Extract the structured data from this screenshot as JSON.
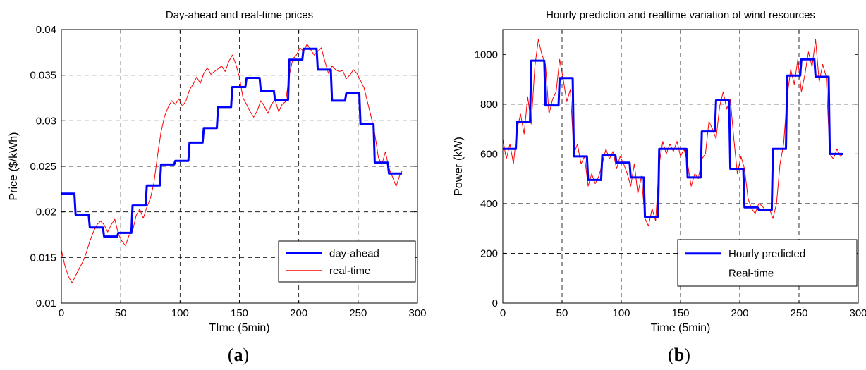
{
  "chart_data": [
    {
      "type": "line",
      "title": "Day-ahead and real-time prices",
      "xlabel": "TIme (5min)",
      "ylabel": "Price ($/kWh)",
      "xlim": [
        0,
        300
      ],
      "ylim": [
        0.01,
        0.04
      ],
      "xticks": [
        "0",
        "50",
        "100",
        "150",
        "200",
        "250",
        "300"
      ],
      "yticks": [
        "0.01",
        "0.015",
        "0.02",
        "0.025",
        "0.03",
        "0.035",
        "0.04"
      ],
      "grid": true,
      "legend_position": "bottom-right",
      "panel_label": {
        "open": "(",
        "letter": "a",
        "close": ")"
      },
      "series": [
        {
          "name": "day-ahead",
          "color": "#0000ff",
          "style": "step",
          "x_step": 12,
          "values": [
            0.022,
            0.0197,
            0.0183,
            0.0173,
            0.0177,
            0.0207,
            0.0229,
            0.0252,
            0.0256,
            0.0276,
            0.0292,
            0.0315,
            0.0337,
            0.0347,
            0.0333,
            0.0323,
            0.0367,
            0.0379,
            0.0356,
            0.0322,
            0.033,
            0.0296,
            0.0254,
            0.0242
          ]
        },
        {
          "name": "real-time",
          "color": "#ff0000",
          "style": "line",
          "x": [
            0,
            3,
            6,
            9,
            12,
            15,
            18,
            21,
            24,
            27,
            30,
            33,
            36,
            39,
            42,
            45,
            48,
            51,
            54,
            57,
            60,
            63,
            66,
            69,
            72,
            75,
            78,
            81,
            84,
            87,
            90,
            93,
            96,
            99,
            102,
            105,
            108,
            111,
            114,
            117,
            120,
            123,
            126,
            129,
            132,
            135,
            138,
            141,
            144,
            147,
            150,
            153,
            156,
            159,
            162,
            165,
            168,
            171,
            174,
            177,
            180,
            183,
            186,
            189,
            192,
            195,
            198,
            201,
            204,
            207,
            210,
            213,
            216,
            219,
            222,
            225,
            228,
            231,
            234,
            237,
            240,
            243,
            246,
            249,
            252,
            255,
            258,
            261,
            264,
            267,
            270,
            273,
            276,
            279,
            282,
            285,
            287
          ],
          "values": [
            0.0158,
            0.0141,
            0.0129,
            0.0122,
            0.013,
            0.0138,
            0.0145,
            0.0155,
            0.0168,
            0.0178,
            0.0186,
            0.019,
            0.0186,
            0.0178,
            0.0186,
            0.0192,
            0.0176,
            0.0168,
            0.0163,
            0.0174,
            0.0179,
            0.0196,
            0.0203,
            0.0193,
            0.0205,
            0.0215,
            0.0232,
            0.0262,
            0.0288,
            0.0305,
            0.0315,
            0.0322,
            0.0318,
            0.0324,
            0.0316,
            0.0322,
            0.0334,
            0.034,
            0.0348,
            0.0341,
            0.0352,
            0.0358,
            0.0351,
            0.0354,
            0.0357,
            0.036,
            0.0354,
            0.0365,
            0.0372,
            0.0362,
            0.0348,
            0.0325,
            0.0318,
            0.031,
            0.0304,
            0.0311,
            0.0322,
            0.0316,
            0.0308,
            0.0318,
            0.0323,
            0.031,
            0.0318,
            0.0321,
            0.035,
            0.0368,
            0.0372,
            0.038,
            0.0376,
            0.0384,
            0.0378,
            0.0372,
            0.0376,
            0.038,
            0.0365,
            0.0352,
            0.036,
            0.0356,
            0.0354,
            0.0355,
            0.0346,
            0.035,
            0.0356,
            0.0352,
            0.0344,
            0.0336,
            0.032,
            0.0304,
            0.0286,
            0.026,
            0.0252,
            0.0266,
            0.0248,
            0.0238,
            0.0228,
            0.024,
            0.0245
          ]
        }
      ]
    },
    {
      "type": "line",
      "title": "Hourly prediction and realtime variation of wind resources",
      "xlabel": "Time (5min)",
      "ylabel": "Power (kW)",
      "xlim": [
        0,
        300
      ],
      "ylim": [
        0,
        1100
      ],
      "xticks": [
        "0",
        "50",
        "100",
        "150",
        "200",
        "250",
        "300"
      ],
      "yticks": [
        "0",
        "200",
        "400",
        "600",
        "800",
        "1000"
      ],
      "grid": true,
      "legend_position": "bottom-right",
      "panel_label": {
        "open": "(",
        "letter": "b",
        "close": ")"
      },
      "series": [
        {
          "name": "Hourly predicted",
          "color": "#0000ff",
          "style": "step",
          "x_step": 12,
          "values": [
            620,
            730,
            975,
            795,
            905,
            590,
            495,
            595,
            565,
            505,
            345,
            620,
            620,
            505,
            690,
            815,
            540,
            385,
            375,
            620,
            915,
            980,
            910,
            600
          ]
        },
        {
          "name": "Real-time",
          "color": "#ff0000",
          "style": "line",
          "x": [
            0,
            3,
            6,
            9,
            12,
            15,
            18,
            21,
            24,
            27,
            30,
            33,
            36,
            39,
            42,
            45,
            48,
            51,
            54,
            57,
            60,
            63,
            66,
            69,
            72,
            75,
            78,
            81,
            84,
            87,
            90,
            93,
            96,
            99,
            102,
            105,
            108,
            111,
            114,
            117,
            120,
            123,
            126,
            129,
            132,
            135,
            138,
            141,
            144,
            147,
            150,
            153,
            156,
            159,
            162,
            165,
            168,
            171,
            174,
            177,
            180,
            183,
            186,
            189,
            192,
            195,
            198,
            201,
            204,
            207,
            210,
            213,
            216,
            219,
            222,
            225,
            228,
            231,
            234,
            237,
            240,
            243,
            246,
            249,
            252,
            255,
            258,
            261,
            264,
            267,
            270,
            273,
            276,
            279,
            282,
            285,
            287
          ],
          "values": [
            660,
            580,
            640,
            560,
            700,
            760,
            680,
            830,
            720,
            950,
            1060,
            1000,
            960,
            760,
            820,
            850,
            980,
            900,
            810,
            860,
            600,
            640,
            560,
            590,
            470,
            520,
            480,
            510,
            560,
            620,
            580,
            610,
            540,
            590,
            560,
            520,
            470,
            560,
            440,
            510,
            340,
            310,
            380,
            330,
            560,
            650,
            600,
            640,
            610,
            650,
            590,
            620,
            560,
            470,
            520,
            500,
            580,
            600,
            730,
            700,
            660,
            790,
            850,
            780,
            820,
            660,
            520,
            590,
            540,
            420,
            380,
            360,
            400,
            390,
            370,
            380,
            340,
            400,
            560,
            640,
            830,
            940,
            880,
            980,
            850,
            920,
            1010,
            950,
            1060,
            890,
            960,
            910,
            600,
            580,
            620,
            590,
            600
          ]
        }
      ]
    }
  ]
}
